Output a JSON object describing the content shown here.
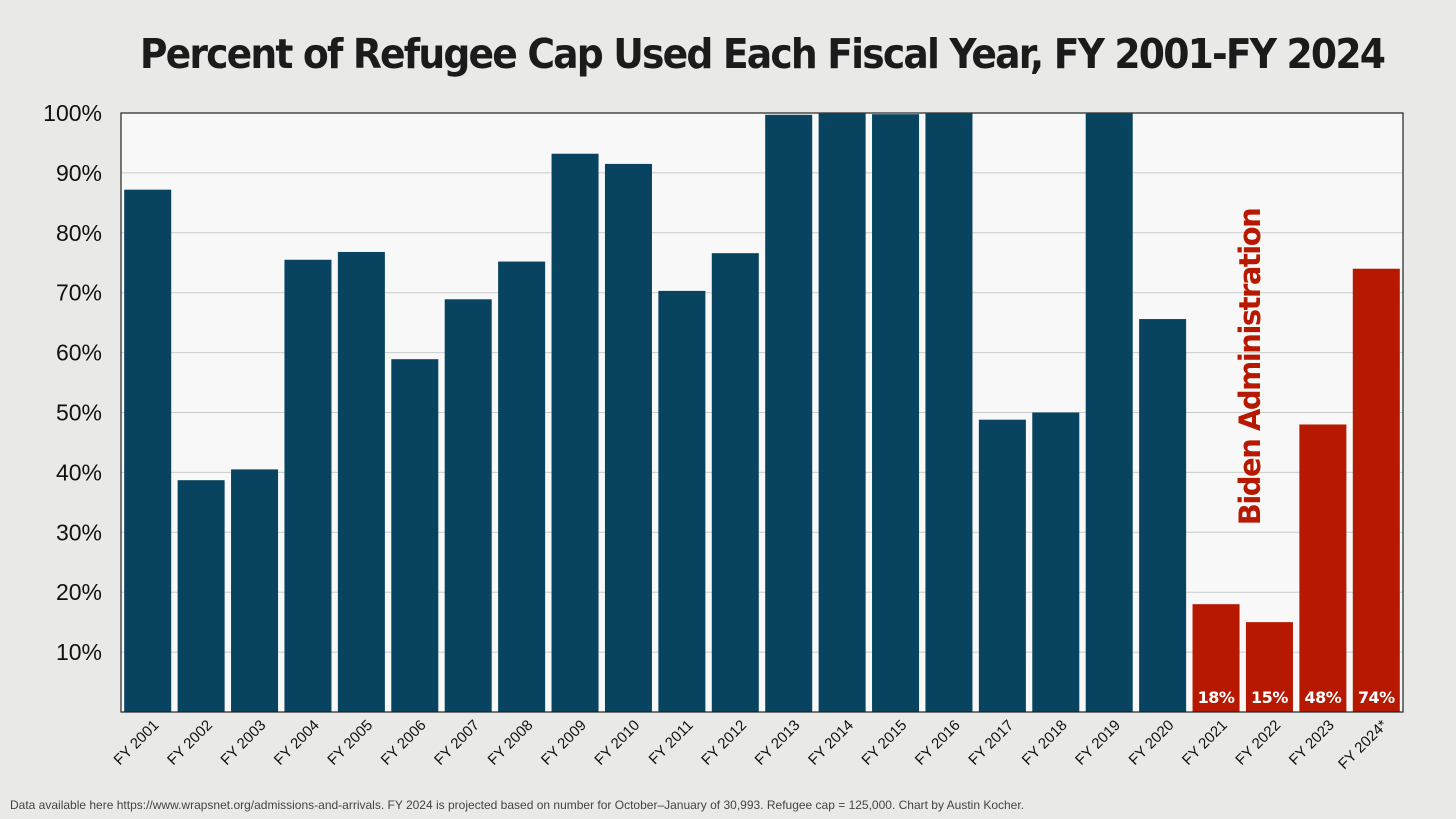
{
  "chart_data": {
    "type": "bar",
    "title": "Percent of Refugee Cap Used Each Fiscal Year, FY 2001-FY 2024",
    "xlabel": "",
    "ylabel": "",
    "ylim": [
      0,
      100
    ],
    "yticks": [
      "10%",
      "20%",
      "30%",
      "40%",
      "50%",
      "60%",
      "70%",
      "80%",
      "90%",
      "100%"
    ],
    "grid": true,
    "categories": [
      "FY 2001",
      "FY 2002",
      "FY 2003",
      "FY 2004",
      "FY 2005",
      "FY 2006",
      "FY 2007",
      "FY 2008",
      "FY 2009",
      "FY 2010",
      "FY 2011",
      "FY 2012",
      "FY 2013",
      "FY 2014",
      "FY 2015",
      "FY 2016",
      "FY 2017",
      "FY 2018",
      "FY 2019",
      "FY 2020",
      "FY 2021",
      "FY 2022",
      "FY 2023",
      "FY 2024*"
    ],
    "values": [
      87.2,
      38.7,
      40.5,
      75.5,
      76.8,
      58.9,
      68.9,
      75.2,
      93.2,
      91.5,
      70.3,
      76.6,
      99.7,
      99.9,
      99.8,
      99.9,
      48.8,
      50.0,
      99.9,
      65.6,
      18.0,
      15.0,
      48.0,
      74.0
    ],
    "data_labels": [
      "",
      "",
      "",
      "",
      "",
      "",
      "",
      "",
      "",
      "",
      "",
      "",
      "",
      "",
      "",
      "",
      "",
      "",
      "",
      "",
      "18%",
      "15%",
      "48%",
      "74%"
    ],
    "annotations": [
      {
        "text": "Biden Administration",
        "applies_to": [
          "FY 2021",
          "FY 2022",
          "FY 2023",
          "FY 2024*"
        ]
      }
    ],
    "colors": {
      "default": "#08435f",
      "highlight": "#b71800"
    },
    "highlighted_categories": [
      "FY 2021",
      "FY 2022",
      "FY 2023",
      "FY 2024*"
    ]
  },
  "footnote": "Data available here https://www.wrapsnet.org/admissions-and-arrivals. FY 2024 is projected based on number for October–January of 30,993. Refugee cap = 125,000. Chart by Austin Kocher."
}
